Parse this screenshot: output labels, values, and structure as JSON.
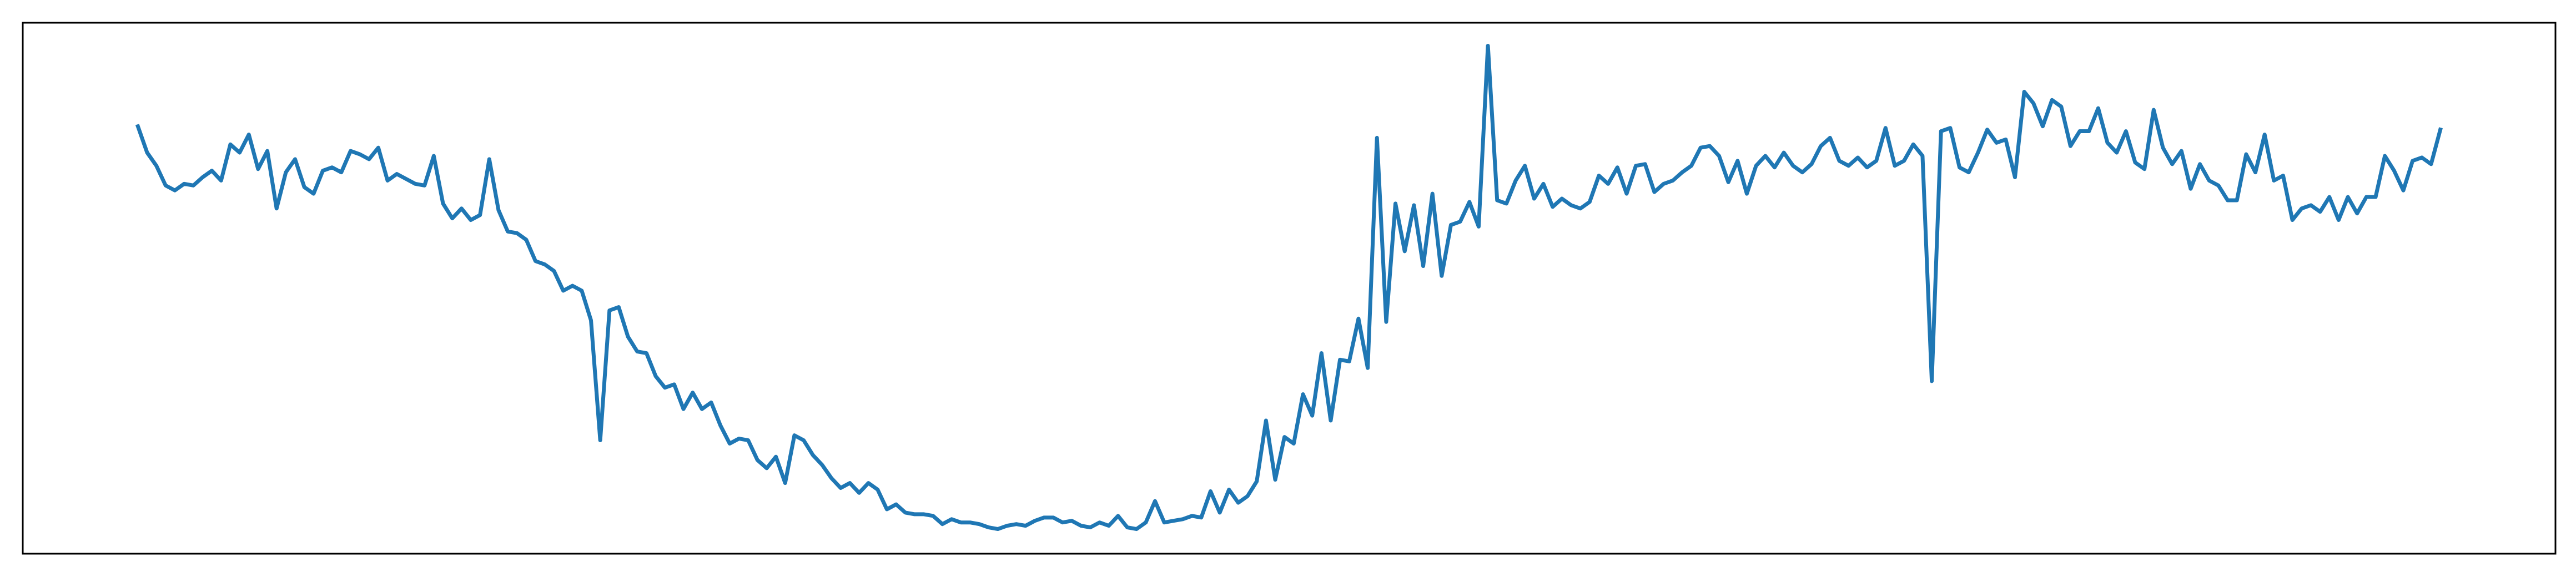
{
  "chart_data": {
    "type": "line",
    "color": "#1f77b4",
    "ylim": [
      0,
      323
    ],
    "values": [
      260,
      244,
      236,
      224,
      221,
      225,
      224,
      229,
      233,
      227,
      249,
      244,
      255,
      234,
      245,
      210,
      232,
      240,
      223,
      219,
      233,
      235,
      232,
      245,
      243,
      240,
      247,
      227,
      231,
      228,
      225,
      224,
      242,
      213,
      204,
      210,
      203,
      206,
      240,
      209,
      196,
      195,
      191,
      178,
      176,
      172,
      160,
      163,
      160,
      142,
      69,
      148,
      150,
      132,
      123,
      122,
      108,
      101,
      103,
      88,
      98,
      88,
      92,
      78,
      67,
      70,
      69,
      57,
      52,
      59,
      43,
      72,
      69,
      60,
      54,
      46,
      40,
      43,
      37,
      43,
      39,
      27,
      30,
      25,
      24,
      24,
      23,
      18,
      21,
      19,
      19,
      18,
      16,
      15,
      17,
      18,
      17,
      20,
      22,
      22,
      19,
      20,
      17,
      16,
      19,
      17,
      23,
      16,
      15,
      19,
      32,
      19,
      20,
      21,
      23,
      22,
      38,
      25,
      39,
      31,
      35,
      44,
      81,
      45,
      71,
      67,
      97,
      84,
      122,
      81,
      118,
      117,
      143,
      113,
      253,
      141,
      213,
      184,
      212,
      175,
      219,
      169,
      200,
      202,
      214,
      199,
      309,
      215,
      213,
      227,
      236,
      216,
      225,
      211,
      216,
      212,
      210,
      214,
      230,
      225,
      235,
      219,
      236,
      237,
      220,
      225,
      227,
      232,
      236,
      247,
      248,
      242,
      226,
      239,
      219,
      236,
      242,
      235,
      244,
      236,
      232,
      237,
      248,
      253,
      239,
      236,
      241,
      235,
      239,
      259,
      236,
      239,
      249,
      242,
      105,
      257,
      259,
      235,
      232,
      244,
      258,
      250,
      252,
      229,
      281,
      274,
      260,
      276,
      272,
      248,
      257,
      257,
      271,
      250,
      244,
      257,
      238,
      234,
      270,
      247,
      237,
      245,
      222,
      237,
      227,
      224,
      215,
      215,
      243,
      232,
      255,
      227,
      230,
      203,
      210,
      212,
      208,
      217,
      203,
      217,
      207,
      217,
      217,
      242,
      233,
      221,
      239,
      241,
      237,
      258
    ]
  }
}
